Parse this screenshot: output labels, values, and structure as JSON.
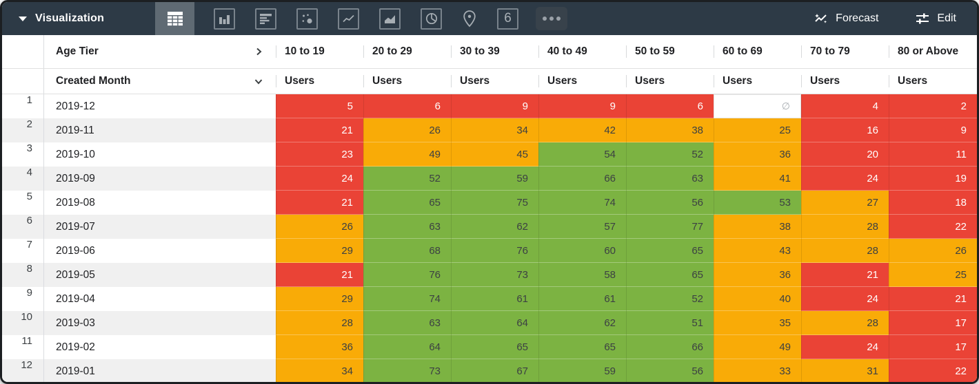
{
  "toolbar": {
    "title": "Visualization",
    "forecast_label": "Forecast",
    "edit_label": "Edit",
    "single_value_icon_label": "6",
    "chart_types": [
      "table",
      "column",
      "bar",
      "scatter",
      "line",
      "area",
      "pie",
      "map",
      "single-value",
      "more"
    ],
    "selected_chart_type": "table"
  },
  "table": {
    "pivot_field_label": "Age Tier",
    "row_field_label": "Created Month",
    "measure_label": "Users",
    "age_tiers": [
      "10 to 19",
      "20 to 29",
      "30 to 39",
      "40 to 49",
      "50 to 59",
      "60 to 69",
      "70 to 79",
      "80 or Above"
    ],
    "null_symbol": "∅",
    "thresholds": {
      "red_max": 24,
      "orange_max": 50
    },
    "rows": [
      {
        "num": "1",
        "month": "2019-12",
        "values": [
          5,
          6,
          9,
          9,
          6,
          null,
          4,
          2
        ]
      },
      {
        "num": "2",
        "month": "2019-11",
        "values": [
          21,
          26,
          34,
          42,
          38,
          25,
          16,
          9
        ]
      },
      {
        "num": "3",
        "month": "2019-10",
        "values": [
          23,
          49,
          45,
          54,
          52,
          36,
          20,
          11
        ]
      },
      {
        "num": "4",
        "month": "2019-09",
        "values": [
          24,
          52,
          59,
          66,
          63,
          41,
          24,
          19
        ]
      },
      {
        "num": "5",
        "month": "2019-08",
        "values": [
          21,
          65,
          75,
          74,
          56,
          53,
          27,
          18
        ]
      },
      {
        "num": "6",
        "month": "2019-07",
        "values": [
          26,
          63,
          62,
          57,
          77,
          38,
          28,
          22
        ]
      },
      {
        "num": "7",
        "month": "2019-06",
        "values": [
          29,
          68,
          76,
          60,
          65,
          43,
          28,
          26
        ]
      },
      {
        "num": "8",
        "month": "2019-05",
        "values": [
          21,
          76,
          73,
          58,
          65,
          36,
          21,
          25
        ]
      },
      {
        "num": "9",
        "month": "2019-04",
        "values": [
          29,
          74,
          61,
          61,
          52,
          40,
          24,
          21
        ]
      },
      {
        "num": "10",
        "month": "2019-03",
        "values": [
          28,
          63,
          64,
          62,
          51,
          35,
          28,
          17
        ]
      },
      {
        "num": "11",
        "month": "2019-02",
        "values": [
          36,
          64,
          65,
          65,
          66,
          49,
          24,
          17
        ]
      },
      {
        "num": "12",
        "month": "2019-01",
        "values": [
          34,
          73,
          67,
          59,
          56,
          33,
          31,
          22
        ]
      }
    ]
  },
  "colors": {
    "red": "#EA4336",
    "orange": "#F9AB07",
    "green": "#7CB342",
    "topbar_bg": "#2d3a46",
    "selected_tile_bg": "#5f6a73",
    "stripe_bg": "#f0f0f0"
  }
}
